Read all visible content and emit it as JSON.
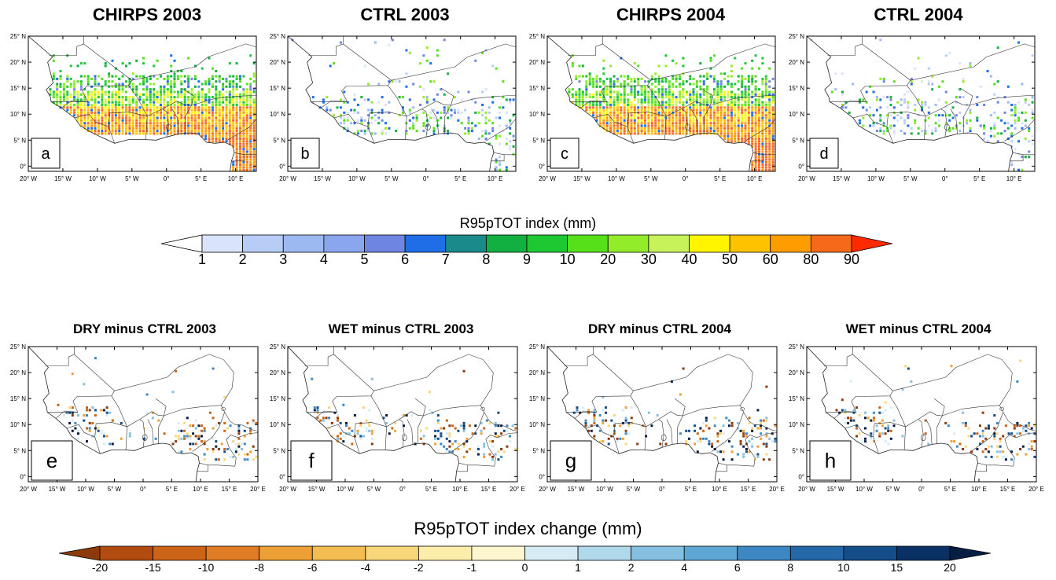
{
  "top_panels": [
    {
      "title": "CHIRPS 2003",
      "letter": "a",
      "kind": "obs"
    },
    {
      "title": "CTRL 2003",
      "letter": "b",
      "kind": "ctrl"
    },
    {
      "title": "CHIRPS 2004",
      "letter": "c",
      "kind": "obs"
    },
    {
      "title": "CTRL 2004",
      "letter": "d",
      "kind": "ctrl"
    }
  ],
  "bottom_panels": [
    {
      "title": "DRY minus CTRL 2003",
      "letter": "e"
    },
    {
      "title": "WET minus CTRL 2003",
      "letter": "f"
    },
    {
      "title": "DRY minus CTRL 2004",
      "letter": "g"
    },
    {
      "title": "WET minus CTRL 2004",
      "letter": "h"
    }
  ],
  "top_axis": {
    "lat_ticks": [
      "25° N",
      "20° N",
      "15° N",
      "10° N",
      "5° N",
      "0°"
    ],
    "lon_ticks": [
      "20° W",
      "15° W",
      "10° W",
      "5° W",
      "0°",
      "5° E",
      "10° E"
    ]
  },
  "bottom_axis": {
    "lat_ticks": [
      "25° N",
      "20° N",
      "15° N",
      "10° N",
      "5° N",
      "0°"
    ],
    "lon_ticks": [
      "20° W",
      "15° W",
      "10° W",
      "5° W",
      "0°",
      "5° E",
      "10° E",
      "15° E",
      "20° E"
    ]
  },
  "colorbar_top": {
    "title": "R95pTOT index (mm)",
    "labels": [
      "1",
      "2",
      "3",
      "4",
      "5",
      "6",
      "7",
      "8",
      "9",
      "10",
      "20",
      "30",
      "40",
      "50",
      "60",
      "80",
      "90"
    ],
    "colors": [
      "#ffffff",
      "#d9e4fb",
      "#b8cdf6",
      "#9db9f2",
      "#8aa6ee",
      "#6f85e2",
      "#1f6ee8",
      "#1b8a8a",
      "#12b040",
      "#1ec832",
      "#55e01a",
      "#92ec2a",
      "#c8f25a",
      "#fff500",
      "#ffc200",
      "#ff9c00",
      "#f46a1a",
      "#ff2a00"
    ]
  },
  "colorbar_bottom": {
    "title": "R95pTOT index change (mm)",
    "labels": [
      "-20",
      "-15",
      "-10",
      "-8",
      "-6",
      "-4",
      "-2",
      "-1",
      "0",
      "1",
      "2",
      "4",
      "6",
      "8",
      "10",
      "15",
      "20"
    ],
    "colors": [
      "#8c3a0c",
      "#b24b10",
      "#cc6418",
      "#e07c24",
      "#eda035",
      "#f4bd52",
      "#f8d77a",
      "#fcedaa",
      "#fdf6cf",
      "#d6ecf5",
      "#b0d9ec",
      "#86c0e0",
      "#5ea6d4",
      "#3d88c2",
      "#2468a8",
      "#154d88",
      "#0a3164",
      "#051e42"
    ]
  }
}
